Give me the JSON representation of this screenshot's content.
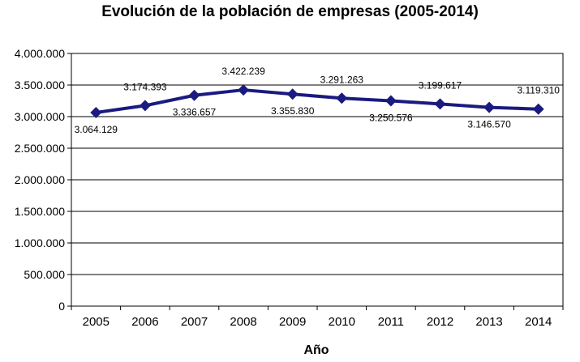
{
  "chart_data": {
    "type": "line",
    "title": "Evolución de la población de empresas (2005-2014)",
    "xlabel": "Año",
    "ylabel": "",
    "categories": [
      "2005",
      "2006",
      "2007",
      "2008",
      "2009",
      "2010",
      "2011",
      "2012",
      "2013",
      "2014"
    ],
    "series": [
      {
        "values": [
          3064129,
          3174393,
          3336657,
          3422239,
          3355830,
          3291263,
          3250576,
          3199617,
          3146570,
          3119310
        ],
        "data_labels": [
          "3.064.129",
          "3.174.393",
          "3.336.657",
          "3.422.239",
          "3.355.830",
          "3.291.263",
          "3.250.576",
          "3.199.617",
          "3.146.570",
          "3.119.310"
        ],
        "color": "#1a1a80"
      }
    ],
    "ylim": [
      0,
      4000000
    ],
    "yticks": [
      0,
      500000,
      1000000,
      1500000,
      2000000,
      2500000,
      3000000,
      3500000,
      4000000
    ],
    "ytick_labels": [
      "0",
      "500.000",
      "1.000.000",
      "1.500.000",
      "2.000.000",
      "2.500.000",
      "3.000.000",
      "3.500.000",
      "4.000.000"
    ],
    "grid": true,
    "legend": false
  }
}
